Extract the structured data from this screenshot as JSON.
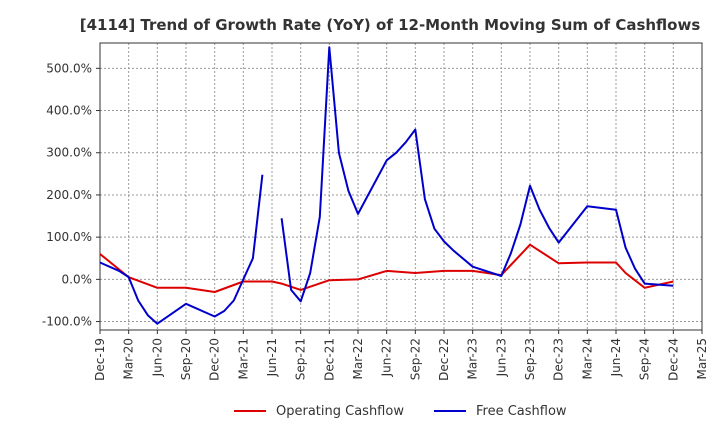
{
  "chart_data": {
    "type": "line",
    "title": "[4114]  Trend of Growth Rate (YoY) of 12-Month Moving Sum of Cashflows",
    "xlabel": "",
    "ylabel": "",
    "x_tick_labels": [
      "Dec-19",
      "Mar-20",
      "Jun-20",
      "Sep-20",
      "Dec-20",
      "Mar-21",
      "Jun-21",
      "Sep-21",
      "Dec-21",
      "Mar-22",
      "Jun-22",
      "Sep-22",
      "Dec-22",
      "Mar-23",
      "Jun-23",
      "Sep-23",
      "Dec-23",
      "Mar-24",
      "Jun-24",
      "Sep-24",
      "Dec-24",
      "Mar-25"
    ],
    "y_ticks": [
      {
        "value": -100,
        "label": "-100.0%"
      },
      {
        "value": 0,
        "label": "0.0%"
      },
      {
        "value": 100,
        "label": "100.0%"
      },
      {
        "value": 200,
        "label": "200.0%"
      },
      {
        "value": 300,
        "label": "300.0%"
      },
      {
        "value": 400,
        "label": "400.0%"
      },
      {
        "value": 500,
        "label": "500.0%"
      }
    ],
    "ylim": [
      -120,
      560
    ],
    "grid": true,
    "legend_position": "bottom",
    "series": [
      {
        "name": "Operating Cashflow",
        "color": "#dd0000",
        "points": [
          [
            "Dec-19",
            60
          ],
          [
            "Mar-20",
            5
          ],
          [
            "Jun-20",
            -20
          ],
          [
            "Sep-20",
            -20
          ],
          [
            "Dec-20",
            -30
          ],
          [
            "Mar-21",
            -5
          ],
          [
            "Jun-21",
            -5
          ],
          [
            "Jul-21",
            -10
          ],
          [
            "Sep-21",
            -25
          ],
          [
            "Dec-21",
            -2
          ],
          [
            "Mar-22",
            0
          ],
          [
            "Jun-22",
            20
          ],
          [
            "Sep-22",
            15
          ],
          [
            "Dec-22",
            20
          ],
          [
            "Mar-23",
            20
          ],
          [
            "Jun-23",
            10
          ],
          [
            "Sep-23",
            82
          ],
          [
            "Dec-23",
            38
          ],
          [
            "Mar-24",
            40
          ],
          [
            "Jun-24",
            40
          ],
          [
            "Jul-24",
            15
          ],
          [
            "Sep-24",
            -20
          ],
          [
            "Dec-24",
            -5
          ]
        ]
      },
      {
        "name": "Free Cashflow",
        "color": "#0000cc",
        "segments": [
          [
            [
              "Dec-19",
              40
            ],
            [
              "Feb-20",
              20
            ],
            [
              "Mar-20",
              5
            ],
            [
              "Apr-20",
              -50
            ],
            [
              "May-20",
              -85
            ],
            [
              "Jun-20",
              -105
            ],
            [
              "Sep-20",
              -58
            ],
            [
              "Dec-20",
              -88
            ],
            [
              "Jan-21",
              -75
            ],
            [
              "Feb-21",
              -50
            ],
            [
              "Mar-21",
              0
            ],
            [
              "Apr-21",
              50
            ],
            [
              "May-21",
              248
            ]
          ],
          [
            [
              "Jul-21",
              145
            ],
            [
              "Aug-21",
              -25
            ],
            [
              "Sep-21",
              -52
            ],
            [
              "Oct-21",
              15
            ],
            [
              "Nov-21",
              148
            ],
            [
              "Dec-21",
              550
            ],
            [
              "Jan-22",
              300
            ],
            [
              "Feb-22",
              210
            ],
            [
              "Mar-22",
              155
            ],
            [
              "Jun-22",
              282
            ],
            [
              "Jul-22",
              300
            ],
            [
              "Aug-22",
              325
            ],
            [
              "Sep-22",
              355
            ],
            [
              "Oct-22",
              190
            ],
            [
              "Nov-22",
              120
            ],
            [
              "Dec-22",
              90
            ],
            [
              "Jan-23",
              68
            ],
            [
              "Mar-23",
              30
            ],
            [
              "Jun-23",
              8
            ],
            [
              "Jul-23",
              62
            ],
            [
              "Aug-23",
              130
            ],
            [
              "Sep-23",
              222
            ],
            [
              "Oct-23",
              165
            ],
            [
              "Nov-23",
              122
            ],
            [
              "Dec-23",
              87
            ],
            [
              "Mar-24",
              173
            ],
            [
              "Jun-24",
              165
            ],
            [
              "Jul-24",
              75
            ],
            [
              "Aug-24",
              25
            ],
            [
              "Sep-24",
              -10
            ],
            [
              "Dec-24",
              -15
            ]
          ]
        ]
      }
    ]
  }
}
